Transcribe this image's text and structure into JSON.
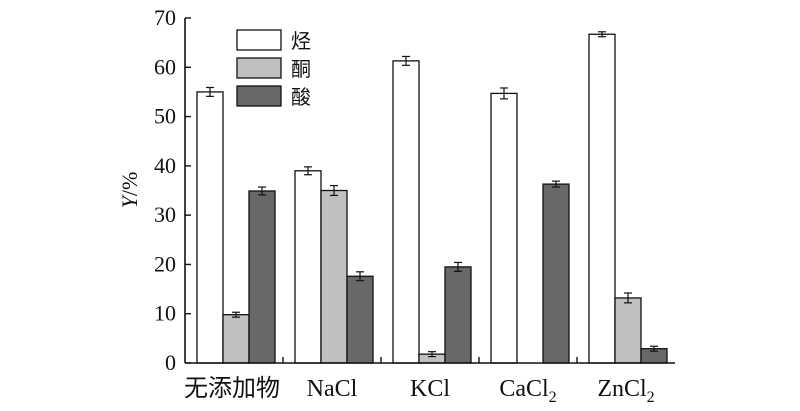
{
  "chart_data": {
    "type": "bar",
    "title": "",
    "ylabel_var": "Y",
    "ylabel_unit": "/%",
    "ylim": [
      0,
      70
    ],
    "yticks": [
      "0",
      "10",
      "20",
      "30",
      "40",
      "50",
      "60",
      "70"
    ],
    "categories": [
      {
        "text": "无添加物",
        "sub": ""
      },
      {
        "text": "NaCl",
        "sub": ""
      },
      {
        "text": "KCl",
        "sub": ""
      },
      {
        "text": "CaCl",
        "sub": "2"
      },
      {
        "text": "ZnCl",
        "sub": "2"
      }
    ],
    "legend_position": "top-left",
    "series": [
      {
        "name": "烃",
        "color": "#ffffff",
        "values": [
          55.0,
          39.0,
          61.3,
          54.7,
          66.7
        ],
        "errors": [
          0.9,
          0.8,
          0.9,
          1.1,
          0.5
        ]
      },
      {
        "name": "酮",
        "color": "#c0c0c0",
        "values": [
          9.8,
          35.0,
          1.8,
          0,
          13.2
        ],
        "errors": [
          0.5,
          1.0,
          0.5,
          0,
          1.0
        ]
      },
      {
        "name": "酸",
        "color": "#686868",
        "values": [
          34.9,
          17.6,
          19.5,
          36.3,
          2.9
        ],
        "errors": [
          0.8,
          0.9,
          0.9,
          0.6,
          0.5
        ]
      }
    ]
  }
}
